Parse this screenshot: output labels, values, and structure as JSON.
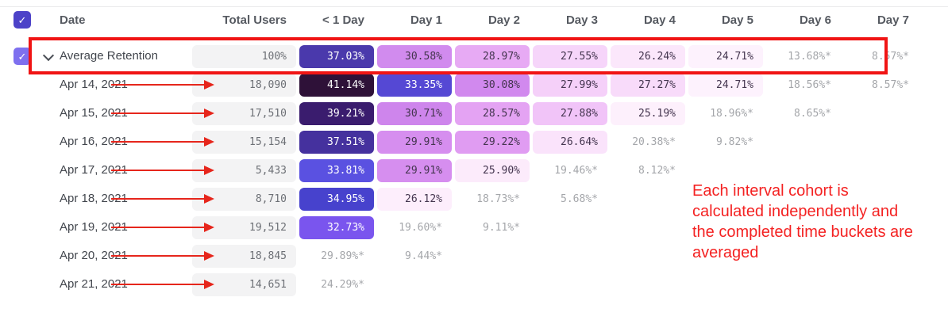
{
  "header": {
    "columns": [
      "Date",
      "Total Users",
      "< 1 Day",
      "Day 1",
      "Day 2",
      "Day 3",
      "Day 4",
      "Day 5",
      "Day 6",
      "Day 7"
    ]
  },
  "rows": [
    {
      "type": "average",
      "label": "Average Retention",
      "total": "100%",
      "cells": [
        {
          "v": "37.03%",
          "bg": "#4a39ac",
          "fg": "#ffffff"
        },
        {
          "v": "30.58%",
          "bg": "#d18bee",
          "fg": "#44354f"
        },
        {
          "v": "28.97%",
          "bg": "#e7aaf4",
          "fg": "#44354f"
        },
        {
          "v": "27.55%",
          "bg": "#f6d5fa",
          "fg": "#44354f"
        },
        {
          "v": "26.24%",
          "bg": "#fbe7fb",
          "fg": "#44354f"
        },
        {
          "v": "24.71%",
          "bg": "#fdf2fd",
          "fg": "#44354f"
        },
        {
          "v": "13.68%*",
          "bg": null,
          "fg": "#a4a6aa"
        },
        {
          "v": "8.57%*",
          "bg": null,
          "fg": "#a4a6aa"
        }
      ]
    },
    {
      "type": "cohort",
      "label": "Apr 14, 2021",
      "total": "18,090",
      "cells": [
        {
          "v": "41.14%",
          "bg": "#2e1138",
          "fg": "#ffffff"
        },
        {
          "v": "33.35%",
          "bg": "#5548d4",
          "fg": "#ffffff"
        },
        {
          "v": "30.08%",
          "bg": "#d189ee",
          "fg": "#44354f"
        },
        {
          "v": "27.99%",
          "bg": "#f5d0f9",
          "fg": "#44354f"
        },
        {
          "v": "27.27%",
          "bg": "#f8dbfa",
          "fg": "#44354f"
        },
        {
          "v": "24.71%",
          "bg": "#fdf2fd",
          "fg": "#44354f"
        },
        {
          "v": "18.56%*",
          "bg": null,
          "fg": "#a4a6aa"
        },
        {
          "v": "8.57%*",
          "bg": null,
          "fg": "#a4a6aa"
        }
      ]
    },
    {
      "type": "cohort",
      "label": "Apr 15, 2021",
      "total": "17,510",
      "cells": [
        {
          "v": "39.21%",
          "bg": "#3a1c6e",
          "fg": "#ffffff"
        },
        {
          "v": "30.71%",
          "bg": "#ce85ec",
          "fg": "#44354f"
        },
        {
          "v": "28.57%",
          "bg": "#e4a3f3",
          "fg": "#44354f"
        },
        {
          "v": "27.88%",
          "bg": "#f1c4f8",
          "fg": "#44354f"
        },
        {
          "v": "25.19%",
          "bg": "#fdf0fc",
          "fg": "#44354f"
        },
        {
          "v": "18.96%*",
          "bg": null,
          "fg": "#a4a6aa"
        },
        {
          "v": "8.65%*",
          "bg": null,
          "fg": "#a4a6aa"
        }
      ]
    },
    {
      "type": "cohort",
      "label": "Apr 16, 2021",
      "total": "15,154",
      "cells": [
        {
          "v": "37.51%",
          "bg": "#45319e",
          "fg": "#ffffff"
        },
        {
          "v": "29.91%",
          "bg": "#d68eef",
          "fg": "#44354f"
        },
        {
          "v": "29.22%",
          "bg": "#e09cf2",
          "fg": "#44354f"
        },
        {
          "v": "26.64%",
          "bg": "#fae3fb",
          "fg": "#44354f"
        },
        {
          "v": "20.38%*",
          "bg": null,
          "fg": "#a4a6aa"
        },
        {
          "v": "9.82%*",
          "bg": null,
          "fg": "#a4a6aa"
        }
      ]
    },
    {
      "type": "cohort",
      "label": "Apr 17, 2021",
      "total": "5,433",
      "cells": [
        {
          "v": "33.81%",
          "bg": "#5a51e1",
          "fg": "#ffffff"
        },
        {
          "v": "29.91%",
          "bg": "#d68eef",
          "fg": "#44354f"
        },
        {
          "v": "25.90%",
          "bg": "#fcebfb",
          "fg": "#44354f"
        },
        {
          "v": "19.46%*",
          "bg": null,
          "fg": "#a4a6aa"
        },
        {
          "v": "8.12%*",
          "bg": null,
          "fg": "#a4a6aa"
        }
      ]
    },
    {
      "type": "cohort",
      "label": "Apr 18, 2021",
      "total": "8,710",
      "cells": [
        {
          "v": "34.95%",
          "bg": "#4742cd",
          "fg": "#ffffff"
        },
        {
          "v": "26.12%",
          "bg": "#fdeefc",
          "fg": "#44354f"
        },
        {
          "v": "18.73%*",
          "bg": null,
          "fg": "#a4a6aa"
        },
        {
          "v": "5.68%*",
          "bg": null,
          "fg": "#a4a6aa"
        }
      ]
    },
    {
      "type": "cohort",
      "label": "Apr 19, 2021",
      "total": "19,512",
      "cells": [
        {
          "v": "32.73%",
          "bg": "#7a55ee",
          "fg": "#ffffff"
        },
        {
          "v": "19.60%*",
          "bg": null,
          "fg": "#a4a6aa"
        },
        {
          "v": "9.11%*",
          "bg": null,
          "fg": "#a4a6aa"
        }
      ]
    },
    {
      "type": "cohort",
      "label": "Apr 20, 2021",
      "total": "18,845",
      "cells": [
        {
          "v": "29.89%*",
          "bg": null,
          "fg": "#a4a6aa"
        },
        {
          "v": "9.44%*",
          "bg": null,
          "fg": "#a4a6aa"
        }
      ]
    },
    {
      "type": "cohort",
      "label": "Apr 21, 2021",
      "total": "14,651",
      "cells": [
        {
          "v": "24.29%*",
          "bg": null,
          "fg": "#a4a6aa"
        }
      ]
    }
  ],
  "annotation": {
    "text": "Each interval cohort is\ncalculated independently and\nthe completed time buckets are\naveraged",
    "color": "#f42222"
  },
  "accents": {
    "highlight_red": "#f01414",
    "arrow_red": "#e6261c",
    "checkbox_header": "#4c42c8",
    "checkbox_row": "#7e70ef",
    "checkmark": "✓"
  }
}
